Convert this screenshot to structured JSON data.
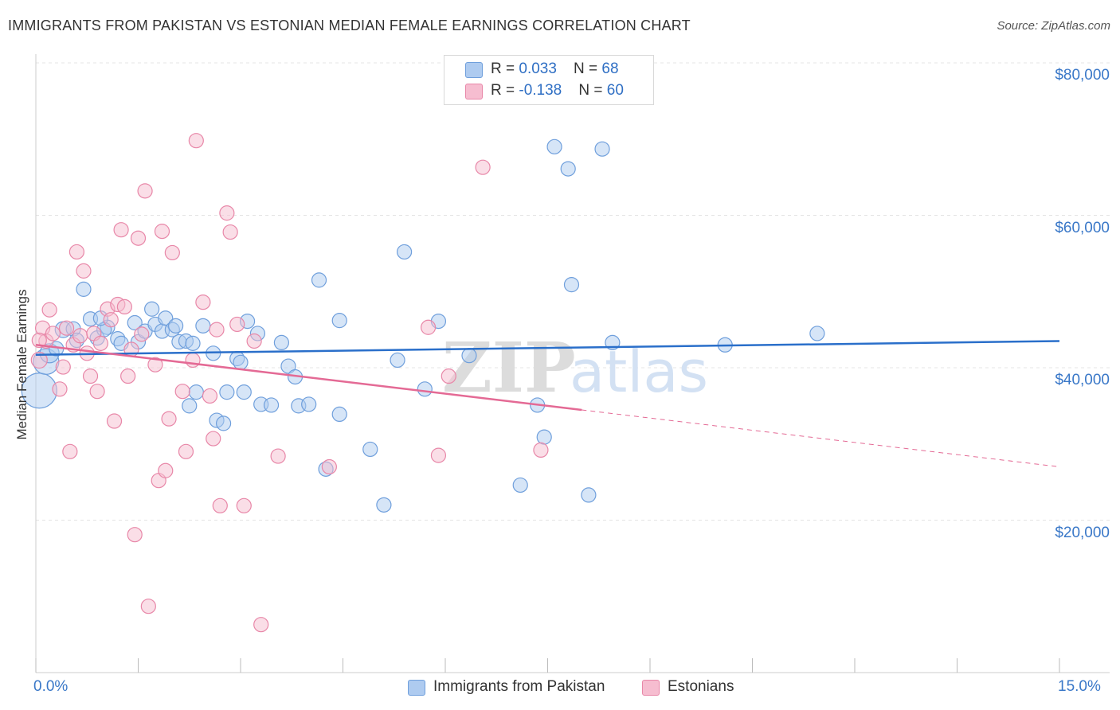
{
  "title": "IMMIGRANTS FROM PAKISTAN VS ESTONIAN MEDIAN FEMALE EARNINGS CORRELATION CHART",
  "source": "Source: ZipAtlas.com",
  "watermark": "ZIPatlas",
  "legend_top": {
    "rows": [
      {
        "r_label": "R = ",
        "r_value": "0.033",
        "n_label": "N = ",
        "n_value": "68"
      },
      {
        "r_label": "R = ",
        "r_value": "-0.138",
        "n_label": "N = ",
        "n_value": "60"
      }
    ]
  },
  "colors": {
    "blue_fill": "#aecbf0",
    "blue_stroke": "#6f9fdc",
    "blue_line": "#2a6fca",
    "pink_fill": "#f6bdd0",
    "pink_stroke": "#e887a8",
    "pink_line": "#e46a95",
    "grid": "#e4e4e4",
    "axis_label": "#3a78c8"
  },
  "chart_data": {
    "type": "scatter",
    "title": "IMMIGRANTS FROM PAKISTAN VS ESTONIAN MEDIAN FEMALE EARNINGS CORRELATION CHART",
    "xlabel": "",
    "ylabel": "Median Female Earnings",
    "xlim": [
      0,
      15
    ],
    "ylim": [
      0,
      80000
    ],
    "x_tick_labels": [
      "0.0%",
      "15.0%"
    ],
    "y_tick_values": [
      20000,
      40000,
      60000,
      80000
    ],
    "y_tick_labels": [
      "$20,000",
      "$40,000",
      "$60,000",
      "$80,000"
    ],
    "grid": true,
    "legend_position": "bottom-center",
    "series": [
      {
        "name": "Immigrants from Pakistan",
        "color": "#aecbf0",
        "r": 0.033,
        "n": 68,
        "trend": {
          "x": [
            0,
            15
          ],
          "y": [
            41700,
            43500
          ],
          "dashed_from": null
        },
        "points": [
          [
            0.05,
            37000,
            22
          ],
          [
            0.15,
            40800,
            16
          ],
          [
            0.2,
            41900,
            12
          ],
          [
            0.4,
            45000,
            10
          ],
          [
            0.55,
            45100,
            9
          ],
          [
            0.7,
            50300,
            9
          ],
          [
            0.8,
            46400,
            9
          ],
          [
            0.9,
            43900,
            9
          ],
          [
            1.05,
            45300,
            9
          ],
          [
            1.2,
            43800,
            9
          ],
          [
            1.25,
            43200,
            9
          ],
          [
            1.45,
            45900,
            9
          ],
          [
            1.5,
            43400,
            9
          ],
          [
            1.6,
            44800,
            9
          ],
          [
            1.7,
            47700,
            9
          ],
          [
            1.75,
            45700,
            9
          ],
          [
            1.85,
            44800,
            9
          ],
          [
            1.9,
            46500,
            9
          ],
          [
            2.0,
            45000,
            9
          ],
          [
            2.1,
            43400,
            9
          ],
          [
            2.2,
            43500,
            9
          ],
          [
            2.3,
            43200,
            9
          ],
          [
            2.25,
            35000,
            9
          ],
          [
            2.35,
            36800,
            9
          ],
          [
            2.45,
            45500,
            9
          ],
          [
            2.6,
            41900,
            9
          ],
          [
            2.65,
            33100,
            9
          ],
          [
            2.75,
            32700,
            9
          ],
          [
            2.8,
            36800,
            9
          ],
          [
            2.95,
            41200,
            9
          ],
          [
            3.0,
            40700,
            9
          ],
          [
            3.05,
            36800,
            9
          ],
          [
            3.1,
            46100,
            9
          ],
          [
            3.25,
            44500,
            9
          ],
          [
            3.3,
            35200,
            9
          ],
          [
            3.45,
            35100,
            9
          ],
          [
            3.6,
            43300,
            9
          ],
          [
            3.7,
            40200,
            9
          ],
          [
            3.8,
            38800,
            9
          ],
          [
            3.85,
            35000,
            9
          ],
          [
            4.0,
            35200,
            9
          ],
          [
            4.15,
            51500,
            9
          ],
          [
            4.25,
            26700,
            9
          ],
          [
            4.45,
            46200,
            9
          ],
          [
            4.45,
            33900,
            9
          ],
          [
            4.9,
            29300,
            9
          ],
          [
            5.1,
            22000,
            9
          ],
          [
            5.3,
            41000,
            9
          ],
          [
            5.4,
            55200,
            9
          ],
          [
            5.7,
            37200,
            9
          ],
          [
            5.9,
            46100,
            9
          ],
          [
            6.35,
            41600,
            9
          ],
          [
            7.1,
            24600,
            9
          ],
          [
            7.35,
            35100,
            9
          ],
          [
            7.45,
            30900,
            9
          ],
          [
            7.6,
            69000,
            9
          ],
          [
            7.8,
            66100,
            9
          ],
          [
            7.85,
            50900,
            9
          ],
          [
            8.1,
            23300,
            9
          ],
          [
            8.3,
            68700,
            9
          ],
          [
            8.45,
            43300,
            9
          ],
          [
            10.1,
            43000,
            9
          ],
          [
            11.45,
            44500,
            9
          ],
          [
            0.3,
            42500,
            9
          ],
          [
            0.6,
            43600,
            9
          ],
          [
            1.0,
            45000,
            9
          ],
          [
            2.05,
            45500,
            9
          ],
          [
            0.95,
            46500,
            9
          ]
        ]
      },
      {
        "name": "Estonians",
        "color": "#f6bdd0",
        "r": -0.138,
        "n": 60,
        "trend": {
          "x": [
            0,
            15
          ],
          "y": [
            43000,
            27000
          ],
          "dashed_from": 8.0
        },
        "points": [
          [
            0.05,
            41000,
            10
          ],
          [
            0.1,
            45200,
            9
          ],
          [
            0.15,
            43500,
            9
          ],
          [
            0.2,
            47600,
            9
          ],
          [
            0.25,
            44500,
            9
          ],
          [
            0.35,
            37200,
            9
          ],
          [
            0.4,
            40100,
            9
          ],
          [
            0.45,
            45200,
            9
          ],
          [
            0.5,
            29000,
            9
          ],
          [
            0.55,
            43000,
            9
          ],
          [
            0.6,
            55200,
            9
          ],
          [
            0.65,
            44200,
            9
          ],
          [
            0.7,
            52700,
            9
          ],
          [
            0.75,
            41900,
            9
          ],
          [
            0.8,
            38900,
            9
          ],
          [
            0.85,
            44500,
            9
          ],
          [
            0.9,
            36900,
            9
          ],
          [
            0.95,
            43200,
            9
          ],
          [
            1.05,
            47700,
            9
          ],
          [
            1.1,
            46300,
            9
          ],
          [
            1.15,
            33000,
            9
          ],
          [
            1.2,
            48300,
            9
          ],
          [
            1.25,
            58100,
            9
          ],
          [
            1.3,
            48000,
            9
          ],
          [
            1.35,
            38900,
            9
          ],
          [
            1.4,
            42400,
            9
          ],
          [
            1.45,
            18100,
            9
          ],
          [
            1.5,
            57000,
            9
          ],
          [
            1.55,
            44400,
            9
          ],
          [
            1.6,
            63200,
            9
          ],
          [
            1.65,
            8700,
            9
          ],
          [
            1.75,
            40400,
            9
          ],
          [
            1.8,
            25200,
            9
          ],
          [
            1.85,
            57900,
            9
          ],
          [
            1.9,
            26500,
            9
          ],
          [
            1.95,
            33300,
            9
          ],
          [
            2.0,
            55100,
            9
          ],
          [
            2.15,
            36900,
            9
          ],
          [
            2.2,
            29000,
            9
          ],
          [
            2.3,
            41000,
            9
          ],
          [
            2.35,
            69800,
            9
          ],
          [
            2.45,
            48600,
            9
          ],
          [
            2.55,
            36300,
            9
          ],
          [
            2.6,
            30700,
            9
          ],
          [
            2.65,
            45000,
            9
          ],
          [
            2.7,
            21900,
            9
          ],
          [
            2.8,
            60300,
            9
          ],
          [
            2.85,
            57800,
            9
          ],
          [
            2.95,
            45700,
            9
          ],
          [
            3.05,
            21900,
            9
          ],
          [
            3.2,
            43500,
            9
          ],
          [
            3.3,
            6300,
            9
          ],
          [
            3.55,
            28400,
            9
          ],
          [
            4.3,
            27000,
            9
          ],
          [
            5.75,
            45300,
            9
          ],
          [
            5.9,
            28500,
            9
          ],
          [
            6.05,
            38900,
            9
          ],
          [
            6.55,
            66300,
            9
          ],
          [
            7.4,
            29200,
            9
          ],
          [
            0.05,
            43600,
            9
          ]
        ]
      }
    ]
  },
  "bottom_legend": [
    {
      "label": "Immigrants from Pakistan"
    },
    {
      "label": "Estonians"
    }
  ]
}
